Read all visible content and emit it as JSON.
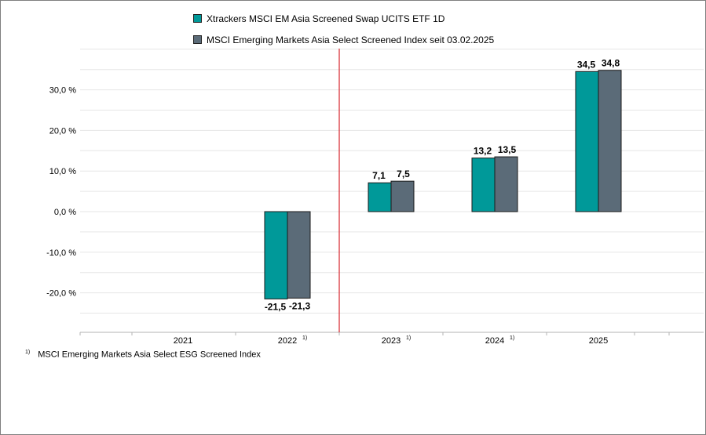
{
  "colors": {
    "fund": "#009999",
    "index": "#5b6b78",
    "divider": "#d7262d",
    "grid": "#e6e6e6"
  },
  "legend": {
    "items": [
      {
        "label": "Xtrackers MSCI EM Asia Screened Swap UCITS ETF 1D",
        "color": "#009999"
      },
      {
        "label": "MSCI Emerging Markets Asia Select Screened Index seit 03.02.2025",
        "color": "#5b6b78"
      }
    ]
  },
  "footnote": {
    "marker": "1)",
    "text": "MSCI Emerging Markets Asia Select ESG Screened Index"
  },
  "chart_data": {
    "type": "bar",
    "categories": [
      "2021",
      "2022",
      "2023",
      "2024",
      "2025"
    ],
    "category_footnotes": [
      "",
      "1)",
      "1)",
      "1)",
      ""
    ],
    "series": [
      {
        "name": "Xtrackers MSCI EM Asia Screened Swap UCITS ETF 1D",
        "values": [
          null,
          -21.5,
          7.1,
          13.2,
          34.5
        ],
        "labels": [
          "",
          "-21,5",
          "7,1",
          "13,2",
          "34,5"
        ]
      },
      {
        "name": "MSCI Emerging Markets Asia Select Screened Index seit 03.02.2025",
        "values": [
          null,
          -21.3,
          7.5,
          13.5,
          34.8
        ],
        "labels": [
          "",
          "-21,3",
          "7,5",
          "13,5",
          "34,8"
        ]
      }
    ],
    "yticks": [
      {
        "value": 30,
        "label": "30,0 %"
      },
      {
        "value": 20,
        "label": "20,0 %"
      },
      {
        "value": 10,
        "label": "10,0 %"
      },
      {
        "value": 0,
        "label": "0,0 %"
      },
      {
        "value": -10,
        "label": "-10,0 %"
      },
      {
        "value": -20,
        "label": "-20,0 %"
      }
    ],
    "ylim": [
      -30,
      40
    ],
    "grid": true,
    "legend_position": "top"
  }
}
